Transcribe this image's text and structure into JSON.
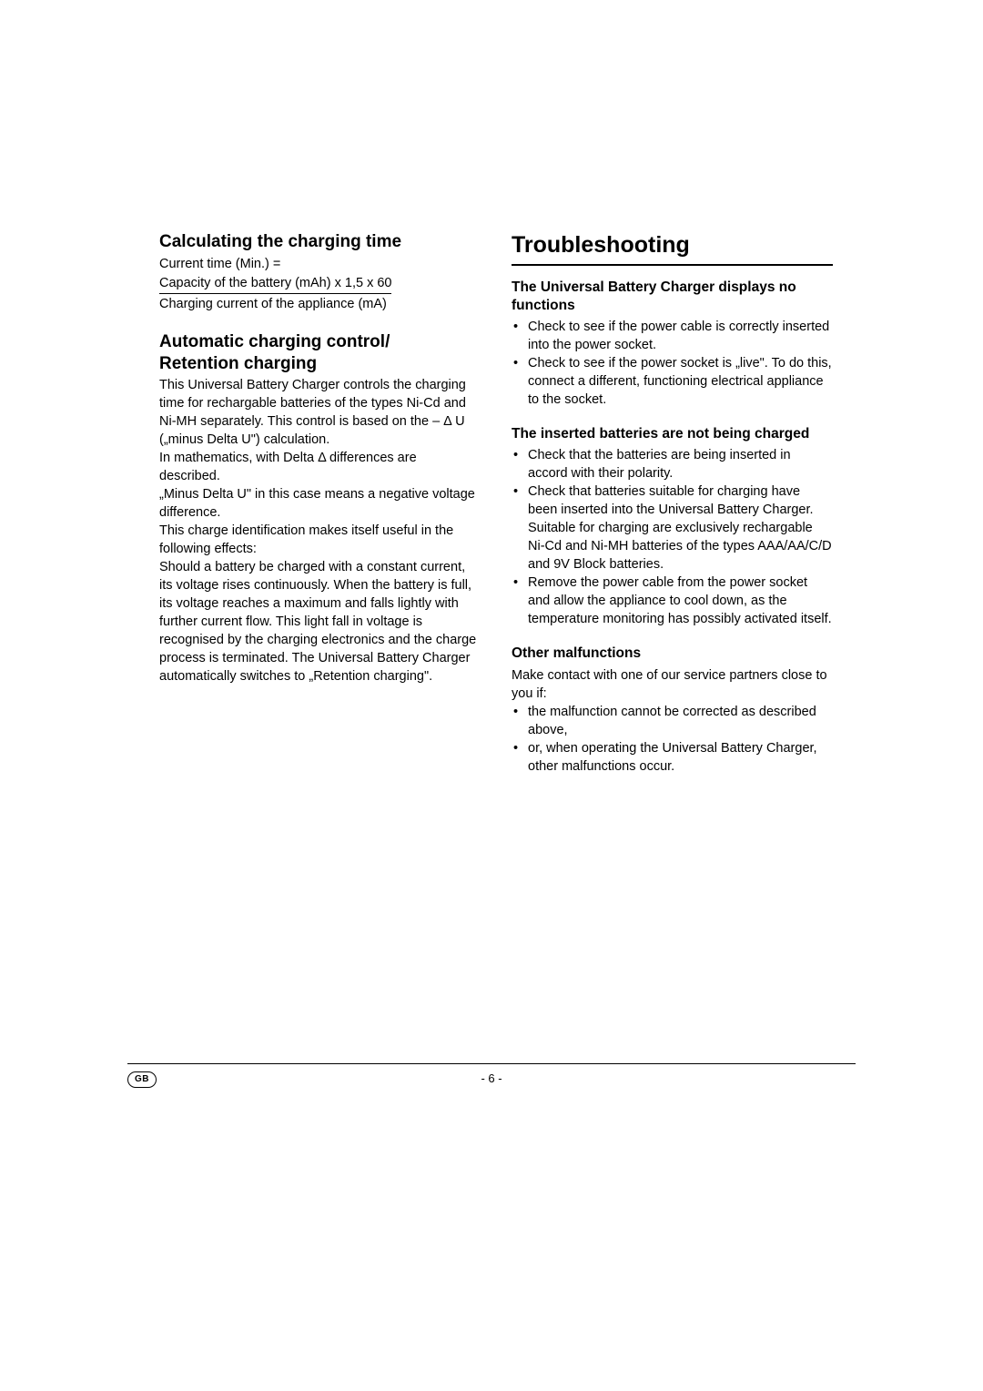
{
  "left": {
    "section1": {
      "heading": "Calculating the charging time",
      "line1": "Current time (Min.) =",
      "numerator": "Capacity of the battery (mAh) x 1,5 x 60",
      "denominator": "Charging current of the appliance (mA)"
    },
    "section2": {
      "heading_l1": "Automatic charging control/",
      "heading_l2": "Retention charging",
      "p1": "This Universal Battery Charger controls the charging time for rechargable batteries of the types Ni-Cd and Ni-MH separately. This control is based on the – Δ U („minus Delta U\") calculation.",
      "p2": "In mathematics, with Delta Δ differences are described.",
      "p3": "„Minus Delta U\" in this case means a negative voltage difference.",
      "p4": "This charge identification makes itself useful in the following effects:",
      "p5": "Should a battery be charged with a constant current, its voltage rises continuously. When the battery is full, its voltage reaches a maximum and falls lightly with further current flow. This light fall in voltage is recognised by the charging electronics and the charge process is terminated. The Universal Battery Charger automatically switches to „Retention charging\"."
    }
  },
  "right": {
    "title": "Troubleshooting",
    "section1": {
      "heading": "The Universal Battery Charger displays no functions",
      "items": [
        "Check to see if the power cable is correctly inserted into the power socket.",
        "Check to see if the power socket is „live\". To do this, connect a different, functioning electrical appliance to the socket."
      ]
    },
    "section2": {
      "heading": "The inserted batteries are not being charged",
      "items": [
        "Check that the batteries are being inserted in accord with their polarity.",
        "Check that batteries suitable for charging have been inserted into the Universal Battery Charger. Suitable for charging are exclusively rechargable Ni-Cd and Ni-MH batteries of the types AAA/AA/C/D and 9V Block batteries.",
        "Remove the power cable from the power socket and allow the appliance to cool down, as the temperature monitoring has possibly activated itself."
      ]
    },
    "section3": {
      "heading": "Other malfunctions",
      "intro": "Make contact with one of our service partners close to you if:",
      "items": [
        "the malfunction cannot be corrected as described above,",
        "or, when operating the Universal Battery Charger, other malfunctions occur."
      ]
    }
  },
  "footer": {
    "lang": "GB",
    "page": "- 6 -"
  }
}
